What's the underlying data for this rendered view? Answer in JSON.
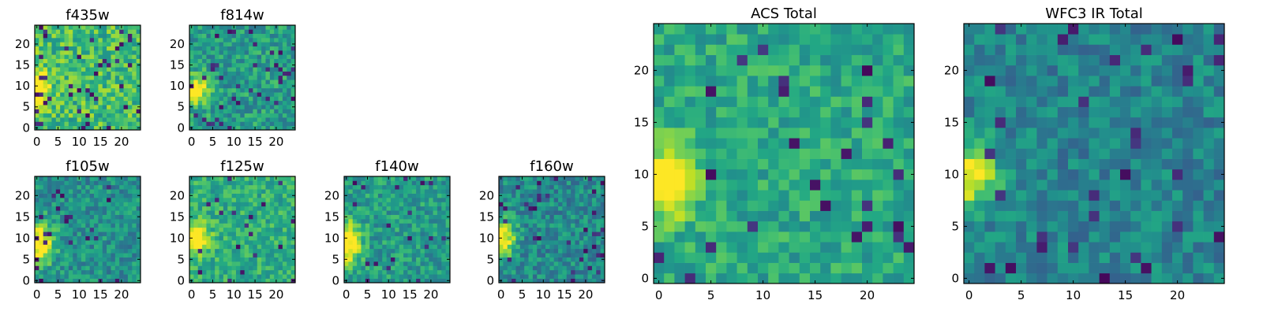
{
  "figure": {
    "panels": [
      {
        "id": "f435w",
        "title": "f435w"
      },
      {
        "id": "f814w",
        "title": "f814w"
      },
      {
        "id": "f105w",
        "title": "f105w"
      },
      {
        "id": "f125w",
        "title": "f125w"
      },
      {
        "id": "f140w",
        "title": "f140w"
      },
      {
        "id": "f160w",
        "title": "f160w"
      },
      {
        "id": "acs_total",
        "title": "ACS Total"
      },
      {
        "id": "wfc3_ir_total",
        "title": "WFC3 IR Total"
      }
    ]
  },
  "chart_data": [
    {
      "type": "heatmap",
      "title": "f435w",
      "grid_size": [
        25,
        25
      ],
      "xlim": [
        -0.5,
        24.5
      ],
      "ylim": [
        -0.5,
        24.5
      ],
      "xticks": [
        0,
        5,
        10,
        15,
        20
      ],
      "yticks": [
        0,
        5,
        10,
        15,
        20
      ],
      "colormap": "viridis",
      "seed": 11,
      "bright_spot": {
        "x": 0.5,
        "y": 9,
        "sx": 1.6,
        "sy": 3.5,
        "amp": 0.55
      },
      "base_level": 0.68,
      "noise": 0.2,
      "dark_fraction": 0.06,
      "grid": false
    },
    {
      "type": "heatmap",
      "title": "f814w",
      "grid_size": [
        25,
        25
      ],
      "xlim": [
        -0.5,
        24.5
      ],
      "ylim": [
        -0.5,
        24.5
      ],
      "xticks": [
        0,
        5,
        10,
        15,
        20
      ],
      "yticks": [
        0,
        5,
        10,
        15,
        20
      ],
      "colormap": "viridis",
      "seed": 23,
      "bright_spot": {
        "x": 1,
        "y": 9,
        "sx": 2,
        "sy": 2.5,
        "amp": 0.55
      },
      "base_level": 0.55,
      "noise": 0.17,
      "dark_fraction": 0.05,
      "grid": false
    },
    {
      "type": "heatmap",
      "title": "f105w",
      "grid_size": [
        25,
        25
      ],
      "xlim": [
        -0.5,
        24.5
      ],
      "ylim": [
        -0.5,
        24.5
      ],
      "xticks": [
        0,
        5,
        10,
        15,
        20
      ],
      "yticks": [
        0,
        5,
        10,
        15,
        20
      ],
      "colormap": "viridis",
      "seed": 37,
      "bright_spot": {
        "x": 1,
        "y": 9,
        "sx": 2.2,
        "sy": 3.5,
        "amp": 0.6
      },
      "base_level": 0.5,
      "noise": 0.16,
      "dark_fraction": 0.04,
      "grid": false
    },
    {
      "type": "heatmap",
      "title": "f125w",
      "grid_size": [
        25,
        25
      ],
      "xlim": [
        -0.5,
        24.5
      ],
      "ylim": [
        -0.5,
        24.5
      ],
      "xticks": [
        0,
        5,
        10,
        15,
        20
      ],
      "yticks": [
        0,
        5,
        10,
        15,
        20
      ],
      "colormap": "viridis",
      "seed": 41,
      "bright_spot": {
        "x": 1,
        "y": 10,
        "sx": 2.2,
        "sy": 2.5,
        "amp": 0.55
      },
      "base_level": 0.62,
      "noise": 0.15,
      "dark_fraction": 0.03,
      "grid": false
    },
    {
      "type": "heatmap",
      "title": "f140w",
      "grid_size": [
        25,
        25
      ],
      "xlim": [
        -0.5,
        24.5
      ],
      "ylim": [
        -0.5,
        24.5
      ],
      "xticks": [
        0,
        5,
        10,
        15,
        20
      ],
      "yticks": [
        0,
        5,
        10,
        15,
        20
      ],
      "colormap": "viridis",
      "seed": 53,
      "bright_spot": {
        "x": 0.5,
        "y": 9,
        "sx": 2,
        "sy": 3.5,
        "amp": 0.6
      },
      "base_level": 0.55,
      "noise": 0.16,
      "dark_fraction": 0.04,
      "grid": false
    },
    {
      "type": "heatmap",
      "title": "f160w",
      "grid_size": [
        25,
        25
      ],
      "xlim": [
        -0.5,
        24.5
      ],
      "ylim": [
        -0.5,
        24.5
      ],
      "xticks": [
        0,
        5,
        10,
        15,
        20
      ],
      "yticks": [
        0,
        5,
        10,
        15,
        20
      ],
      "colormap": "viridis",
      "seed": 67,
      "bright_spot": {
        "x": 0.5,
        "y": 10,
        "sx": 2,
        "sy": 3,
        "amp": 0.6
      },
      "base_level": 0.48,
      "noise": 0.16,
      "dark_fraction": 0.05,
      "grid": false
    },
    {
      "type": "heatmap",
      "title": "ACS Total",
      "grid_size": [
        25,
        25
      ],
      "xlim": [
        -0.5,
        24.5
      ],
      "ylim": [
        -0.5,
        24.5
      ],
      "xticks": [
        0,
        5,
        10,
        15,
        20
      ],
      "yticks": [
        0,
        5,
        10,
        15,
        20
      ],
      "colormap": "viridis",
      "seed": 79,
      "bright_spot": {
        "x": 1,
        "y": 9.5,
        "sx": 1.8,
        "sy": 2.5,
        "amp": 0.55
      },
      "base_level": 0.6,
      "noise": 0.14,
      "dark_fraction": 0.04,
      "grid": false
    },
    {
      "type": "heatmap",
      "title": "WFC3 IR Total",
      "grid_size": [
        25,
        25
      ],
      "xlim": [
        -0.5,
        24.5
      ],
      "ylim": [
        -0.5,
        24.5
      ],
      "xticks": [
        0,
        5,
        10,
        15,
        20
      ],
      "yticks": [
        0,
        5,
        10,
        15,
        20
      ],
      "colormap": "viridis",
      "seed": 97,
      "bright_spot": {
        "x": 0.5,
        "y": 10,
        "sx": 1.5,
        "sy": 2,
        "amp": 0.62
      },
      "base_level": 0.45,
      "noise": 0.14,
      "dark_fraction": 0.05,
      "grid": false
    }
  ]
}
